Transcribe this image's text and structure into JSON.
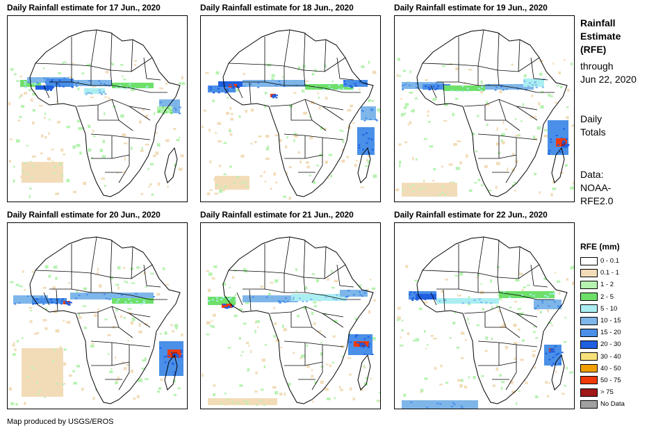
{
  "panels": [
    {
      "title": "Daily Rainfall estimate for 17 Jun., 2020"
    },
    {
      "title": "Daily Rainfall estimate for 18 Jun., 2020"
    },
    {
      "title": "Daily Rainfall estimate for 19 Jun., 2020"
    },
    {
      "title": "Daily Rainfall estimate for 20 Jun., 2020"
    },
    {
      "title": "Daily Rainfall estimate for 21 Jun., 2020"
    },
    {
      "title": "Daily Rainfall estimate for 22 Jun., 2020"
    }
  ],
  "sidebar": {
    "title_line1": "Rainfall",
    "title_line2": "Estimate",
    "title_line3": "(RFE)",
    "through_label": "through",
    "through_date": "Jun 22, 2020",
    "daily_line1": "Daily",
    "daily_line2": "Totals",
    "data_line1": "Data:",
    "data_line2": "NOAA-",
    "data_line3": "RFE2.0"
  },
  "legend": {
    "title": "RFE (mm)",
    "items": [
      {
        "label": "0 - 0.1",
        "color": "#ffffff"
      },
      {
        "label": "0.1 - 1",
        "color": "#f2dcb8"
      },
      {
        "label": "1 - 2",
        "color": "#b6f2b0"
      },
      {
        "label": "2 - 5",
        "color": "#6ee06a"
      },
      {
        "label": "5 - 10",
        "color": "#aaeef2"
      },
      {
        "label": "10 - 15",
        "color": "#7fb6ea"
      },
      {
        "label": "15 - 20",
        "color": "#4a8fe8"
      },
      {
        "label": "20 - 30",
        "color": "#1f5fe0"
      },
      {
        "label": "30 - 40",
        "color": "#f7e27a"
      },
      {
        "label": "40 - 50",
        "color": "#f2a000"
      },
      {
        "label": "50 - 75",
        "color": "#f03a0a"
      },
      {
        "label": "> 75",
        "color": "#a01818"
      },
      {
        "label": "No Data",
        "color": "#a0a0a0"
      }
    ]
  },
  "footer": "Map produced by USGS/EROS"
}
